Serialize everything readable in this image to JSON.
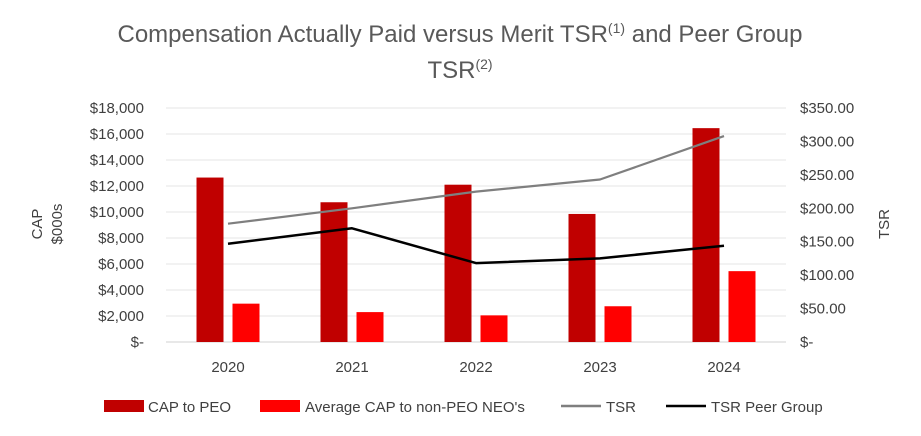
{
  "chart_data": {
    "type": "bar",
    "title": "Compensation Actually Paid versus Merit TSR",
    "title_sup1": "(1)",
    "title_mid": " and Peer Group",
    "title_line2": "TSR",
    "title_sup2": "(2)",
    "categories": [
      "2020",
      "2021",
      "2022",
      "2023",
      "2024"
    ],
    "left_axis": {
      "label_line1": "CAP",
      "label_line2": "$000s",
      "ylim": [
        0,
        18000
      ],
      "ticks": [
        "$-",
        "$2,000",
        "$4,000",
        "$6,000",
        "$8,000",
        "$10,000",
        "$12,000",
        "$14,000",
        "$16,000",
        "$18,000"
      ]
    },
    "right_axis": {
      "label": "TSR",
      "ylim": [
        0,
        350
      ],
      "ticks": [
        "$-",
        "$50.00",
        "$100.00",
        "$150.00",
        "$200.00",
        "$250.00",
        "$300.00",
        "$350.00"
      ]
    },
    "series": [
      {
        "name": "CAP to PEO",
        "type": "bar",
        "axis": "left",
        "color": "#c00000",
        "values": [
          12650,
          10750,
          12100,
          9850,
          16450
        ]
      },
      {
        "name": "Average CAP to non-PEO NEO's",
        "type": "bar",
        "axis": "left",
        "color": "#ff0000",
        "values": [
          2950,
          2300,
          2050,
          2750,
          5450
        ]
      },
      {
        "name": "TSR",
        "type": "line",
        "axis": "right",
        "color": "#7f7f7f",
        "values": [
          177,
          200,
          225,
          243,
          308
        ]
      },
      {
        "name": "TSR Peer Group",
        "type": "line",
        "axis": "right",
        "color": "#000000",
        "values": [
          147,
          170,
          118,
          125,
          144
        ]
      }
    ],
    "grid": true,
    "legend_position": "bottom"
  }
}
